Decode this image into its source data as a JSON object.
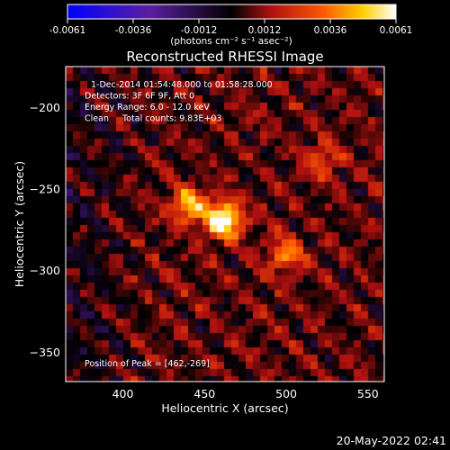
{
  "chart_data": {
    "type": "heatmap",
    "title": "Reconstructed RHESSI Image",
    "xlabel": "Heliocentric X (arcsec)",
    "ylabel": "Heliocentric Y (arcsec)",
    "xlim": [
      365,
      560
    ],
    "ylim": [
      -368,
      -175
    ],
    "x_ticks": [
      400,
      450,
      500,
      550
    ],
    "y_ticks": [
      -200,
      -250,
      -300,
      -350
    ],
    "colorbar": {
      "ticks": [
        "-0.0061",
        "-0.0036",
        "-0.0012",
        "0.0012",
        "0.0036",
        "0.0061"
      ],
      "range": [
        -0.0061,
        0.0061
      ],
      "units": "(photons cm⁻² s⁻¹ asec⁻²)",
      "colormap": "purple-black-red-yellow-white"
    },
    "annotations": [
      "1-Dec-2014 01:54:48.000 to 01:58:28.000",
      "Detectors: 3F 6F 9F, Att 0",
      "Energy Range: 6.0 - 12.0 keV",
      "Clean     Total counts: 9.83E+03"
    ],
    "peak_label": "Position of Peak = [462,-269]",
    "peak": [
      462,
      -269
    ],
    "sources": [
      {
        "x": 462,
        "y": -269,
        "level": 0.0061
      },
      {
        "x": 440,
        "y": -260,
        "level": 0.004
      },
      {
        "x": 500,
        "y": -290,
        "level": 0.003
      },
      {
        "x": 522,
        "y": -232,
        "level": 0.0024
      }
    ]
  },
  "timestamp": "20-May-2022 02:41"
}
